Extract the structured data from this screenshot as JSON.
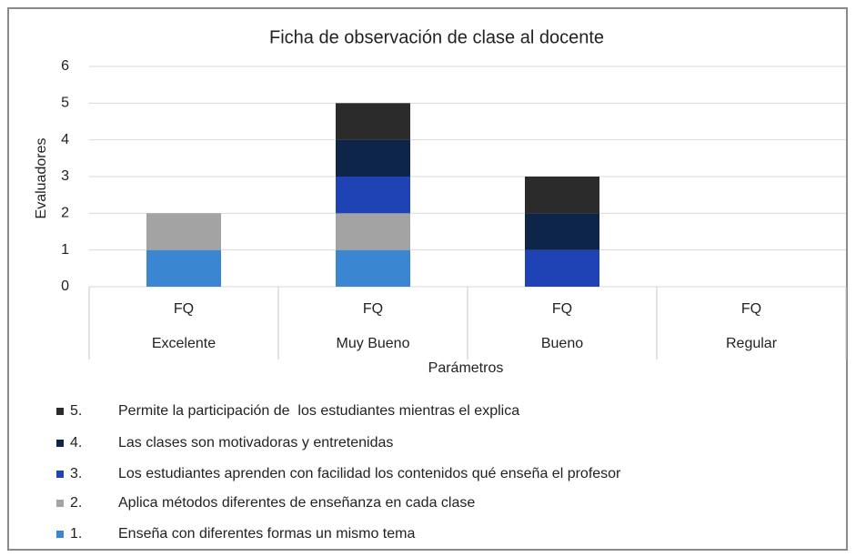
{
  "chart_data": {
    "type": "stacked_bar",
    "title": "Ficha de observación de clase al docente",
    "x_label": "Parámetros",
    "y_label": "Evaluadores",
    "subcategories": [
      "FQ",
      "FQ",
      "FQ",
      "FQ"
    ],
    "categories": [
      "Excelente",
      "Muy Bueno",
      "Bueno",
      "Regular"
    ],
    "series": [
      {
        "number": "1.",
        "name": "Enseña con diferentes formas un mismo tema",
        "color": "#3a86d0",
        "values": [
          1,
          1,
          0,
          0
        ]
      },
      {
        "number": "2.",
        "name": "Aplica métodos diferentes de enseñanza en cada clase",
        "color": "#a3a3a3",
        "values": [
          1,
          1,
          0,
          0
        ]
      },
      {
        "number": "3.",
        "name": "Los estudiantes aprenden con facilidad los contenidos qué enseña el profesor",
        "color": "#1f42b4",
        "values": [
          0,
          1,
          1,
          0
        ]
      },
      {
        "number": "4.",
        "name": "Las clases son motivadoras y entretenidas",
        "color": "#0d2548",
        "values": [
          0,
          1,
          1,
          0
        ]
      },
      {
        "number": "5.",
        "name": "Permite la participación de  los estudiantes mientras el explica",
        "color": "#2b2b2b",
        "values": [
          0,
          1,
          1,
          0
        ]
      }
    ],
    "ylim": [
      0,
      6
    ],
    "yticks": [
      0,
      1,
      2,
      3,
      4,
      5,
      6
    ],
    "grid": true,
    "legend": "bottom"
  }
}
